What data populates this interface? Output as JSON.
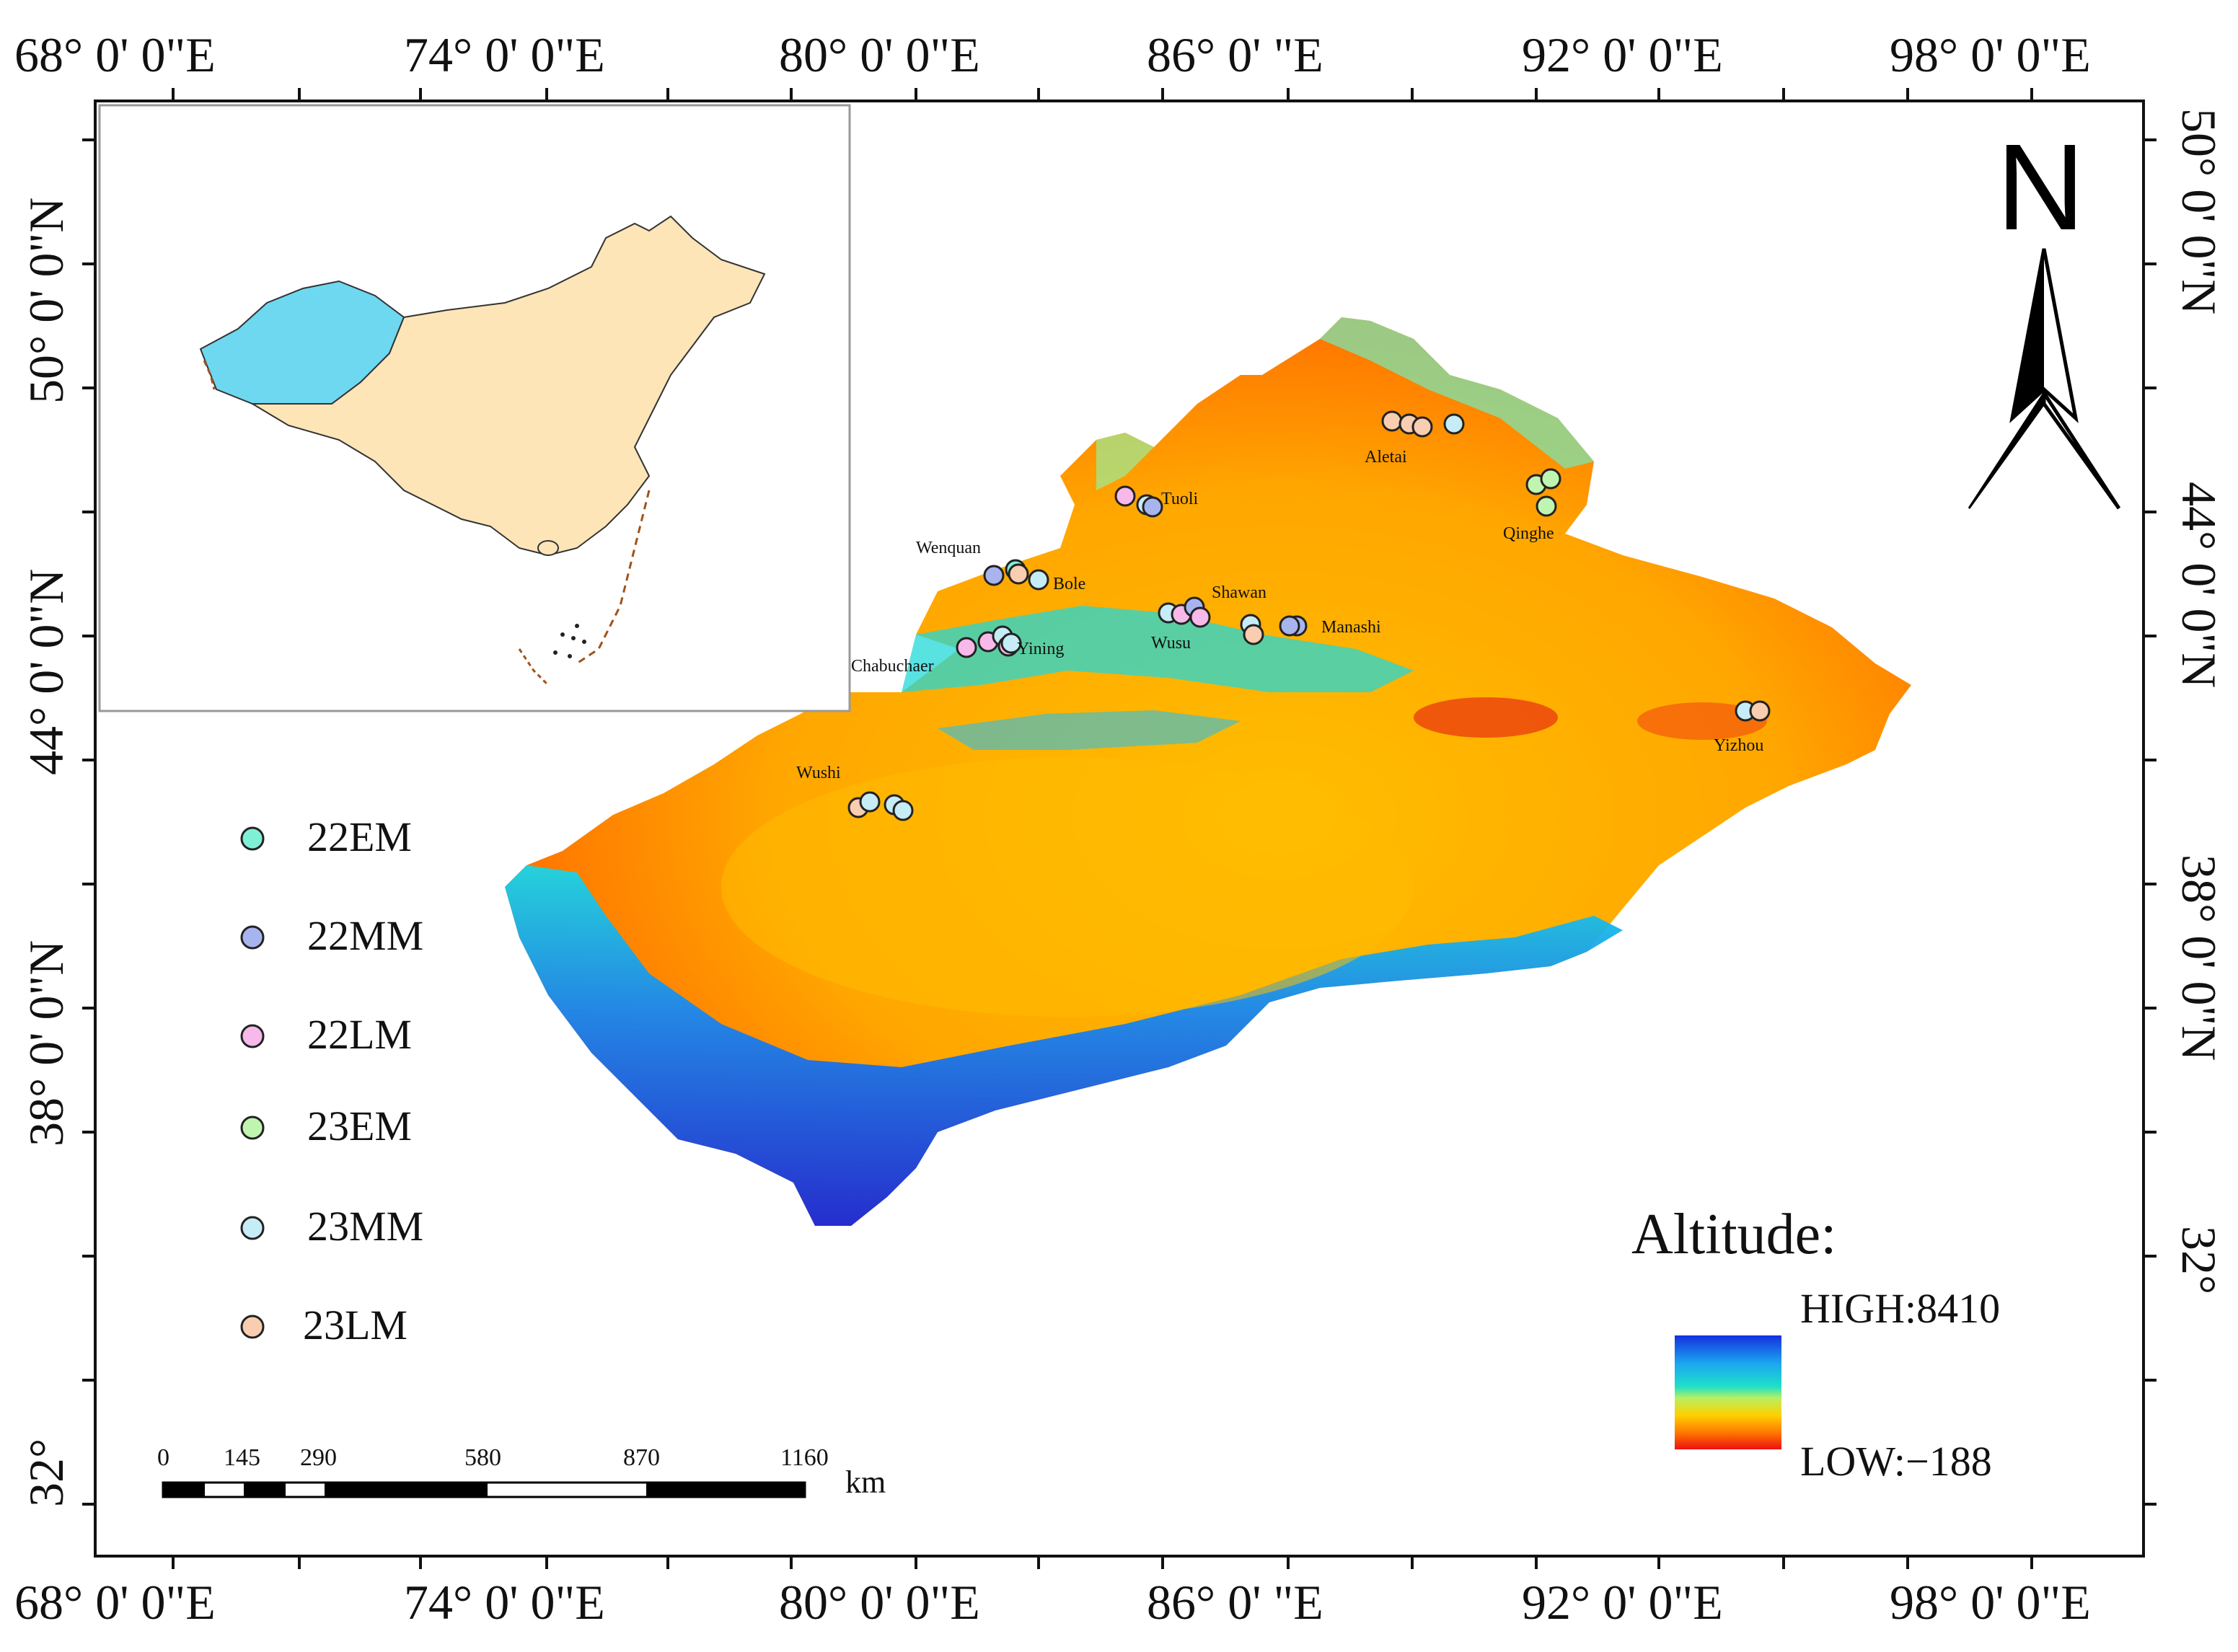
{
  "longitude_labels": [
    "68°  0' 0\"E",
    "74°  0' 0\"E",
    "80°  0' 0\"E",
    "86°  0'  \"E",
    "92°  0' 0\"E",
    "98°  0' 0\"E"
  ],
  "latitude_labels": [
    "50°  0' 0\"N",
    "44°  0' 0\"N",
    "38°  0' 0\"N",
    "32°"
  ],
  "north_arrow": {
    "letter": "N"
  },
  "inset": {
    "highlight_color": "#6ed8f0",
    "land_color": "#fde5b8"
  },
  "legend": [
    {
      "label": "22EM",
      "color": "#7ff0d6"
    },
    {
      "label": "22MM",
      "color": "#a8b4ee"
    },
    {
      "label": "22LM",
      "color": "#f7b8ea"
    },
    {
      "label": "23EM",
      "color": "#bff5b0"
    },
    {
      "label": "23MM",
      "color": "#c6ecf6"
    },
    {
      "label": "23LM",
      "color": "#f8cdb0"
    }
  ],
  "sites": [
    "Tuoli",
    "Wenquan",
    "Bole",
    "Shawan",
    "Manashi",
    "Wusu",
    "Yining",
    "Chabuchaer",
    "Aletai",
    "Qinghe",
    "Yizhou",
    "Wushi"
  ],
  "scale_bar": {
    "ticks": [
      "0",
      "145",
      "290",
      "580",
      "870",
      "1160"
    ],
    "unit": "km"
  },
  "altitude": {
    "title": "Altitude:",
    "high": "HIGH:8410",
    "low": "LOW:−188"
  }
}
